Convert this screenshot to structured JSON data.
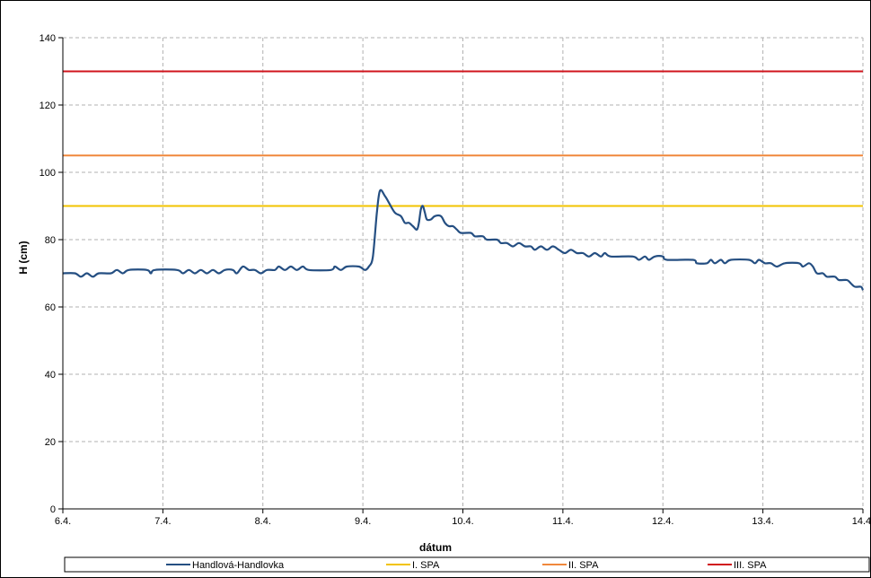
{
  "chart_data": {
    "type": "line",
    "xlabel": "dátum",
    "ylabel": "H (cm)",
    "xlim": [
      0,
      8
    ],
    "ylim": [
      0,
      140
    ],
    "yticks": [
      0,
      20,
      40,
      60,
      80,
      100,
      120,
      140
    ],
    "xticks": [
      {
        "value": 0,
        "label": "6.4."
      },
      {
        "value": 1,
        "label": "7.4."
      },
      {
        "value": 2,
        "label": "8.4."
      },
      {
        "value": 3,
        "label": "9.4."
      },
      {
        "value": 4,
        "label": "10.4."
      },
      {
        "value": 5,
        "label": "11.4."
      },
      {
        "value": 6,
        "label": "12.4."
      },
      {
        "value": 7,
        "label": "13.4."
      },
      {
        "value": 8,
        "label": "14.4."
      }
    ],
    "grid": true,
    "legend_position": "bottom",
    "series": [
      {
        "name": "Handlová-Handlovka",
        "color": "#254f82",
        "points": [
          [
            0.0,
            70
          ],
          [
            0.12,
            70
          ],
          [
            0.18,
            69
          ],
          [
            0.24,
            70
          ],
          [
            0.3,
            69
          ],
          [
            0.36,
            70
          ],
          [
            0.48,
            70
          ],
          [
            0.54,
            71
          ],
          [
            0.6,
            70
          ],
          [
            0.66,
            71
          ],
          [
            0.84,
            71
          ],
          [
            0.88,
            70
          ],
          [
            0.92,
            71
          ],
          [
            1.14,
            71
          ],
          [
            1.2,
            70
          ],
          [
            1.26,
            71
          ],
          [
            1.32,
            70
          ],
          [
            1.38,
            71
          ],
          [
            1.44,
            70
          ],
          [
            1.5,
            71
          ],
          [
            1.56,
            70
          ],
          [
            1.62,
            71
          ],
          [
            1.7,
            71
          ],
          [
            1.74,
            70
          ],
          [
            1.8,
            72
          ],
          [
            1.86,
            71
          ],
          [
            1.92,
            71
          ],
          [
            1.98,
            70
          ],
          [
            2.04,
            71
          ],
          [
            2.12,
            71
          ],
          [
            2.16,
            72
          ],
          [
            2.22,
            71
          ],
          [
            2.28,
            72
          ],
          [
            2.34,
            71
          ],
          [
            2.4,
            72
          ],
          [
            2.46,
            71
          ],
          [
            2.68,
            71
          ],
          [
            2.72,
            72
          ],
          [
            2.78,
            71
          ],
          [
            2.84,
            72
          ],
          [
            2.96,
            72
          ],
          [
            3.02,
            71
          ],
          [
            3.06,
            72
          ],
          [
            3.1,
            75
          ],
          [
            3.14,
            88
          ],
          [
            3.17,
            94.5
          ],
          [
            3.22,
            93
          ],
          [
            3.26,
            91
          ],
          [
            3.32,
            88
          ],
          [
            3.38,
            87
          ],
          [
            3.42,
            85
          ],
          [
            3.46,
            85
          ],
          [
            3.5,
            84
          ],
          [
            3.54,
            83
          ],
          [
            3.56,
            85
          ],
          [
            3.58,
            89
          ],
          [
            3.6,
            90
          ],
          [
            3.62,
            88
          ],
          [
            3.64,
            86
          ],
          [
            3.68,
            86
          ],
          [
            3.72,
            87
          ],
          [
            3.78,
            87
          ],
          [
            3.82,
            85
          ],
          [
            3.86,
            84
          ],
          [
            3.9,
            84
          ],
          [
            3.94,
            83
          ],
          [
            3.98,
            82
          ],
          [
            4.08,
            82
          ],
          [
            4.12,
            81
          ],
          [
            4.2,
            81
          ],
          [
            4.24,
            80
          ],
          [
            4.34,
            80
          ],
          [
            4.38,
            79
          ],
          [
            4.44,
            79
          ],
          [
            4.5,
            78
          ],
          [
            4.56,
            79
          ],
          [
            4.62,
            78
          ],
          [
            4.68,
            78
          ],
          [
            4.72,
            77
          ],
          [
            4.78,
            78
          ],
          [
            4.84,
            77
          ],
          [
            4.9,
            78
          ],
          [
            4.96,
            77
          ],
          [
            5.02,
            76
          ],
          [
            5.08,
            77
          ],
          [
            5.14,
            76
          ],
          [
            5.2,
            76
          ],
          [
            5.26,
            75
          ],
          [
            5.32,
            76
          ],
          [
            5.38,
            75
          ],
          [
            5.42,
            76
          ],
          [
            5.48,
            75
          ],
          [
            5.7,
            75
          ],
          [
            5.76,
            74
          ],
          [
            5.82,
            75
          ],
          [
            5.86,
            74
          ],
          [
            5.92,
            75
          ],
          [
            6.0,
            75
          ],
          [
            6.04,
            74
          ],
          [
            6.3,
            74
          ],
          [
            6.34,
            73
          ],
          [
            6.44,
            73
          ],
          [
            6.48,
            74
          ],
          [
            6.52,
            73
          ],
          [
            6.58,
            74
          ],
          [
            6.62,
            73
          ],
          [
            6.68,
            74
          ],
          [
            6.86,
            74
          ],
          [
            6.92,
            73
          ],
          [
            6.96,
            74
          ],
          [
            7.02,
            73
          ],
          [
            7.08,
            73
          ],
          [
            7.14,
            72
          ],
          [
            7.22,
            73
          ],
          [
            7.36,
            73
          ],
          [
            7.4,
            72
          ],
          [
            7.46,
            73
          ],
          [
            7.5,
            72
          ],
          [
            7.54,
            70
          ],
          [
            7.6,
            70
          ],
          [
            7.64,
            69
          ],
          [
            7.72,
            69
          ],
          [
            7.76,
            68
          ],
          [
            7.84,
            68
          ],
          [
            7.88,
            67
          ],
          [
            7.92,
            66
          ],
          [
            7.98,
            66
          ],
          [
            8.0,
            65
          ]
        ]
      },
      {
        "name": "I. SPA",
        "color": "#f2c300",
        "constant": 90
      },
      {
        "name": "II. SPA",
        "color": "#f0883c",
        "constant": 105
      },
      {
        "name": "III. SPA",
        "color": "#d0141c",
        "constant": 130
      }
    ]
  }
}
